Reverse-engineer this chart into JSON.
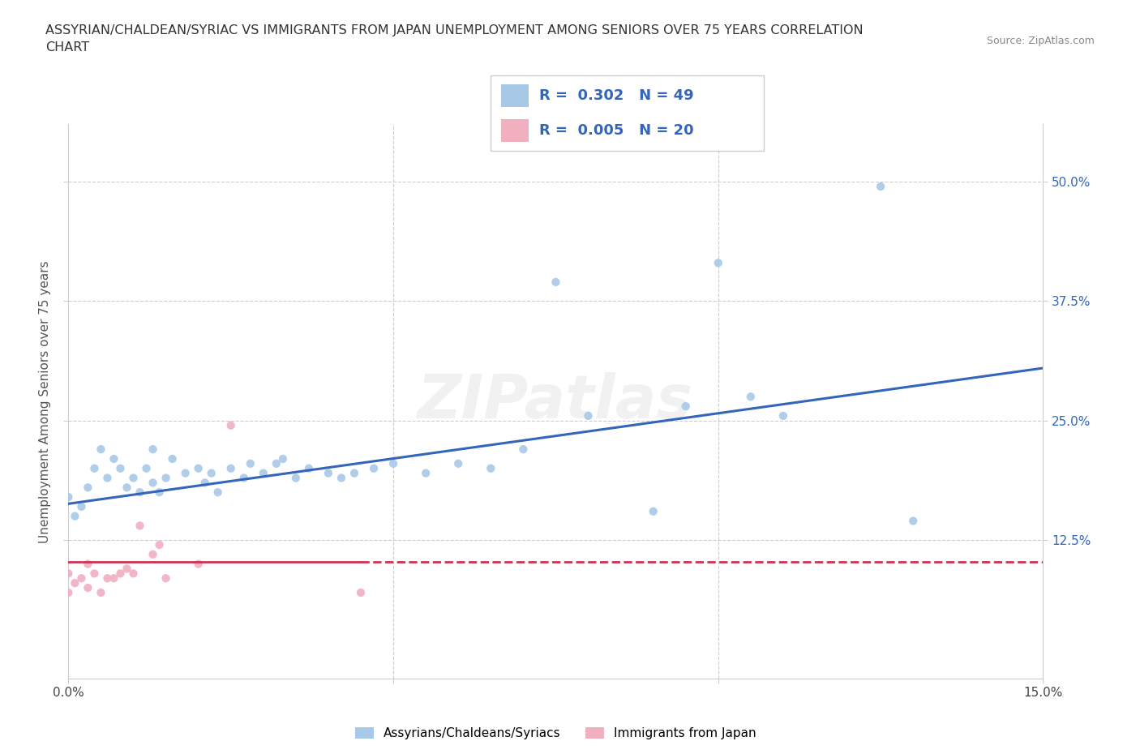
{
  "title_line1": "ASSYRIAN/CHALDEAN/SYRIAC VS IMMIGRANTS FROM JAPAN UNEMPLOYMENT AMONG SENIORS OVER 75 YEARS CORRELATION",
  "title_line2": "CHART",
  "source_text": "Source: ZipAtlas.com",
  "ylabel": "Unemployment Among Seniors over 75 years",
  "xlim": [
    0.0,
    0.15
  ],
  "ylim": [
    -0.02,
    0.56
  ],
  "grid_color": "#cccccc",
  "background_color": "#ffffff",
  "legend_R1": "0.302",
  "legend_N1": "49",
  "legend_R2": "0.005",
  "legend_N2": "20",
  "blue_color": "#a8c8e8",
  "pink_color": "#f0b0c0",
  "blue_line_color": "#3366bb",
  "pink_line_color": "#cc3355",
  "watermark": "ZIPatlas",
  "assyrian_x": [
    0.0,
    0.001,
    0.002,
    0.003,
    0.004,
    0.005,
    0.006,
    0.007,
    0.008,
    0.009,
    0.01,
    0.011,
    0.012,
    0.013,
    0.013,
    0.014,
    0.015,
    0.016,
    0.018,
    0.02,
    0.021,
    0.022,
    0.023,
    0.025,
    0.027,
    0.028,
    0.03,
    0.032,
    0.033,
    0.035,
    0.037,
    0.04,
    0.042,
    0.044,
    0.047,
    0.05,
    0.055,
    0.06,
    0.065,
    0.07,
    0.075,
    0.08,
    0.09,
    0.095,
    0.1,
    0.105,
    0.11,
    0.125,
    0.13
  ],
  "assyrian_y": [
    0.17,
    0.15,
    0.16,
    0.18,
    0.2,
    0.22,
    0.19,
    0.21,
    0.2,
    0.18,
    0.19,
    0.175,
    0.2,
    0.22,
    0.185,
    0.175,
    0.19,
    0.21,
    0.195,
    0.2,
    0.185,
    0.195,
    0.175,
    0.2,
    0.19,
    0.205,
    0.195,
    0.205,
    0.21,
    0.19,
    0.2,
    0.195,
    0.19,
    0.195,
    0.2,
    0.205,
    0.195,
    0.205,
    0.2,
    0.22,
    0.395,
    0.255,
    0.155,
    0.265,
    0.415,
    0.275,
    0.255,
    0.495,
    0.145
  ],
  "japan_x": [
    0.0,
    0.0,
    0.001,
    0.002,
    0.003,
    0.003,
    0.004,
    0.005,
    0.006,
    0.007,
    0.008,
    0.009,
    0.01,
    0.011,
    0.013,
    0.014,
    0.015,
    0.02,
    0.025,
    0.045
  ],
  "japan_y": [
    0.07,
    0.09,
    0.08,
    0.085,
    0.075,
    0.1,
    0.09,
    0.07,
    0.085,
    0.085,
    0.09,
    0.095,
    0.09,
    0.14,
    0.11,
    0.12,
    0.085,
    0.1,
    0.245,
    0.07
  ],
  "blue_trend_x0": 0.0,
  "blue_trend_y0": 0.163,
  "blue_trend_x1": 0.15,
  "blue_trend_y1": 0.305,
  "pink_trend_x0": 0.0,
  "pink_trend_y0": 0.102,
  "pink_trend_x1": 0.15,
  "pink_trend_y1": 0.102
}
